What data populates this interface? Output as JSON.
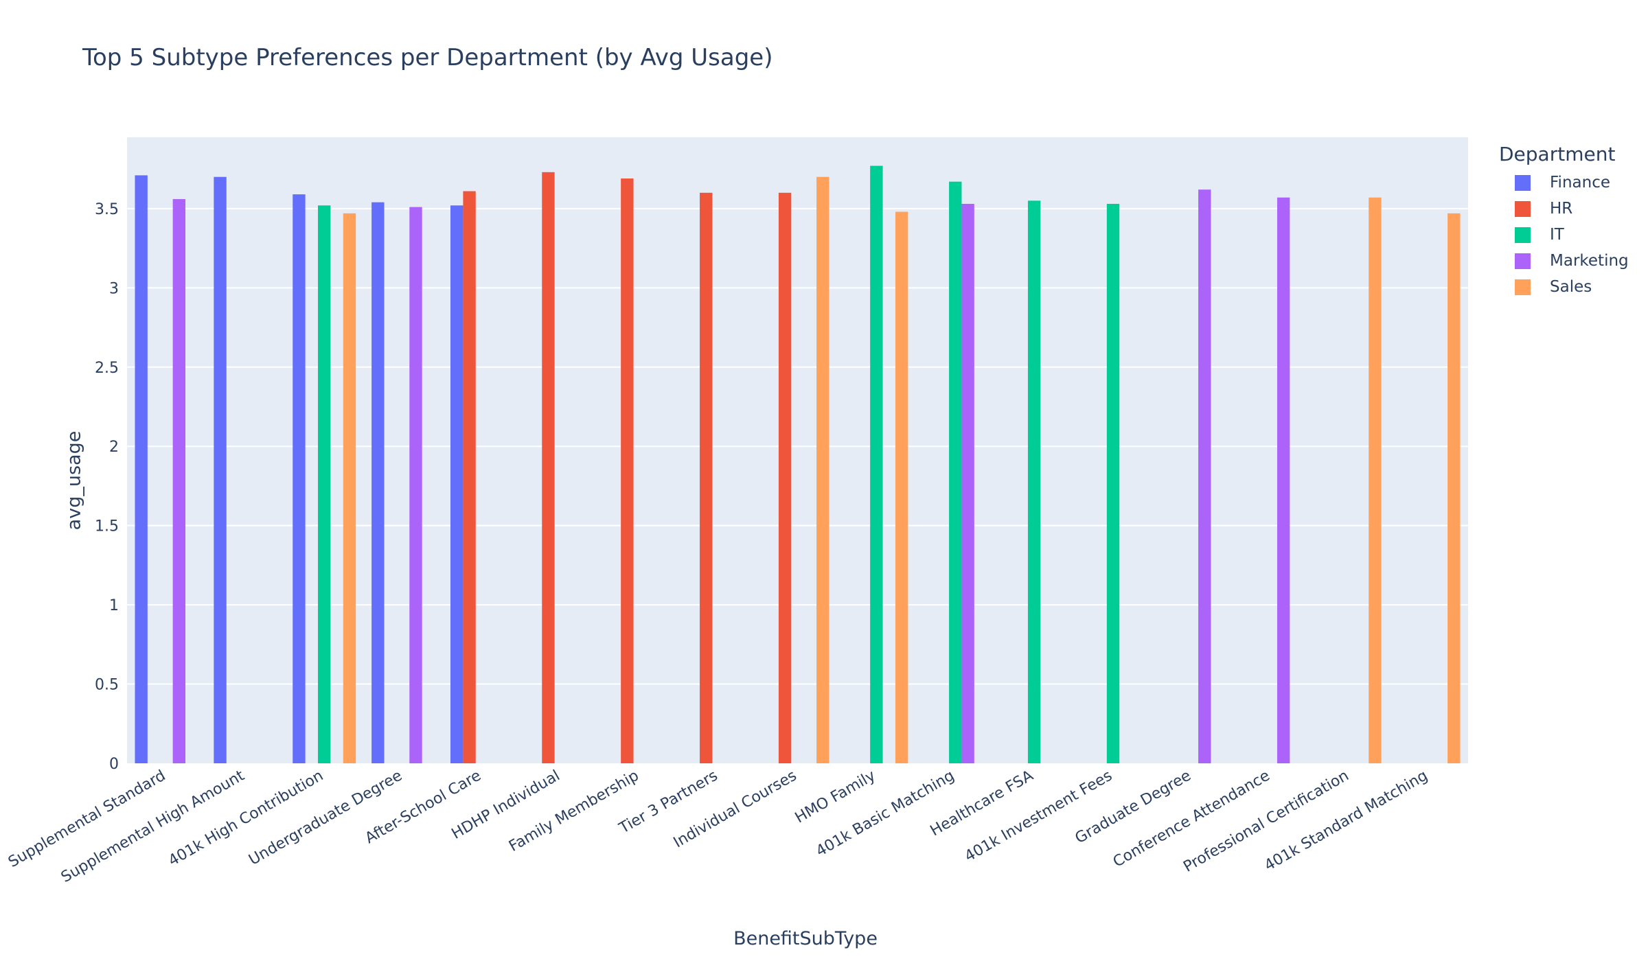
{
  "chart_data": {
    "type": "bar",
    "title": "Top 5 Subtype Preferences per Department (by Avg Usage)",
    "xlabel": "BenefitSubType",
    "ylabel": "avg_usage",
    "ylim": [
      0,
      3.95
    ],
    "yticks": [
      0,
      0.5,
      1,
      1.5,
      2,
      2.5,
      3,
      3.5
    ],
    "ytick_labels": [
      "0",
      "0.5",
      "1",
      "1.5",
      "2",
      "2.5",
      "3",
      "3.5"
    ],
    "grid": true,
    "barmode": "group",
    "legend_title": "Department",
    "legend_position": "right",
    "categories": [
      "Supplemental Standard",
      "Supplemental High Amount",
      "401k High Contribution",
      "Undergraduate Degree",
      "After-School Care",
      "HDHP Individual",
      "Family Membership",
      "Tier 3 Partners",
      "Individual Courses",
      "HMO Family",
      "401k Basic Matching",
      "Healthcare FSA",
      "401k Investment Fees",
      "Graduate Degree",
      "Conference Attendance",
      "Professional Certification",
      "401k Standard Matching"
    ],
    "series": [
      {
        "name": "Finance",
        "color": "#636efa",
        "values": [
          3.71,
          3.7,
          3.59,
          3.54,
          3.52,
          null,
          null,
          null,
          null,
          null,
          null,
          null,
          null,
          null,
          null,
          null,
          null
        ]
      },
      {
        "name": "HR",
        "color": "#EF553B",
        "values": [
          null,
          null,
          null,
          null,
          3.61,
          3.73,
          3.69,
          3.6,
          3.6,
          null,
          null,
          null,
          null,
          null,
          null,
          null,
          null
        ]
      },
      {
        "name": "IT",
        "color": "#00cc96",
        "values": [
          null,
          null,
          3.52,
          null,
          null,
          null,
          null,
          null,
          null,
          3.77,
          3.67,
          3.55,
          3.53,
          null,
          null,
          null,
          null
        ]
      },
      {
        "name": "Marketing",
        "color": "#ab63fa",
        "values": [
          3.56,
          null,
          null,
          3.51,
          null,
          null,
          null,
          null,
          null,
          null,
          3.53,
          null,
          null,
          3.62,
          3.57,
          null,
          null
        ]
      },
      {
        "name": "Sales",
        "color": "#FFA15A",
        "values": [
          null,
          null,
          3.47,
          null,
          null,
          null,
          null,
          null,
          3.7,
          3.48,
          null,
          null,
          null,
          null,
          null,
          3.57,
          3.47
        ]
      }
    ]
  }
}
